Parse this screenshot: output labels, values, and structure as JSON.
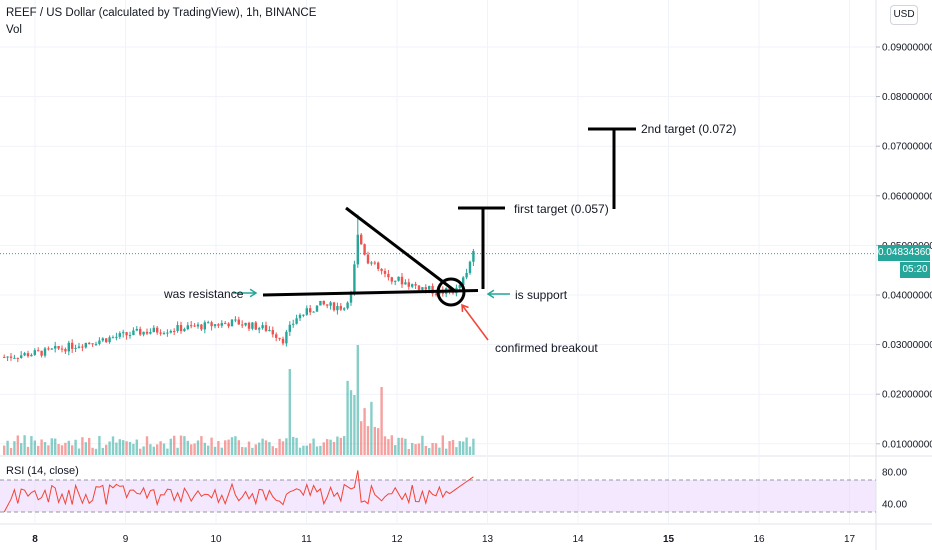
{
  "header": {
    "title": "REEF / US Dollar (calculated by TradingView), 1h, BINANCE",
    "vol_label": "Vol",
    "rsi_label": "RSI (14, close)",
    "currency_button": "USD",
    "last_price": "0.04834360",
    "countdown": "05:20"
  },
  "colors": {
    "up": "#26a69a",
    "down": "#ef5350",
    "rsi_line": "#f44336",
    "rsi_band": "#e9d6fb",
    "annotation_line": "#000000",
    "arrow_teal": "#26a69a",
    "arrow_red": "#f44336",
    "price_line": "#26a69a"
  },
  "chart_data": {
    "type": "candlestick",
    "price_axis_labels": [
      "0.09000000",
      "0.08000000",
      "0.07000000",
      "0.06000000",
      "0.05000000",
      "0.04000000",
      "0.03000000",
      "0.02000000",
      "0.01000000"
    ],
    "price_axis_values": [
      0.09,
      0.08,
      0.07,
      0.06,
      0.05,
      0.04,
      0.03,
      0.02,
      0.01
    ],
    "rsi_axis_labels": [
      "80.00",
      "40.00"
    ],
    "rsi_axis_values": [
      80,
      40
    ],
    "time_axis_labels": [
      "8",
      "9",
      "10",
      "11",
      "12",
      "13",
      "14",
      "15",
      "16",
      "17"
    ],
    "time_axis_bold": [
      "8",
      "15"
    ],
    "ylim": [
      0.006,
      0.095
    ],
    "last_price": 0.0483436,
    "annotations": {
      "was_resistance": "was resistance",
      "is_support": "is support",
      "confirmed_breakout": "confirmed breakout",
      "first_target": "first target (0.057)",
      "second_target": "2nd target (0.072)"
    },
    "targets": [
      0.057,
      0.072
    ],
    "support_level": 0.0405
  }
}
